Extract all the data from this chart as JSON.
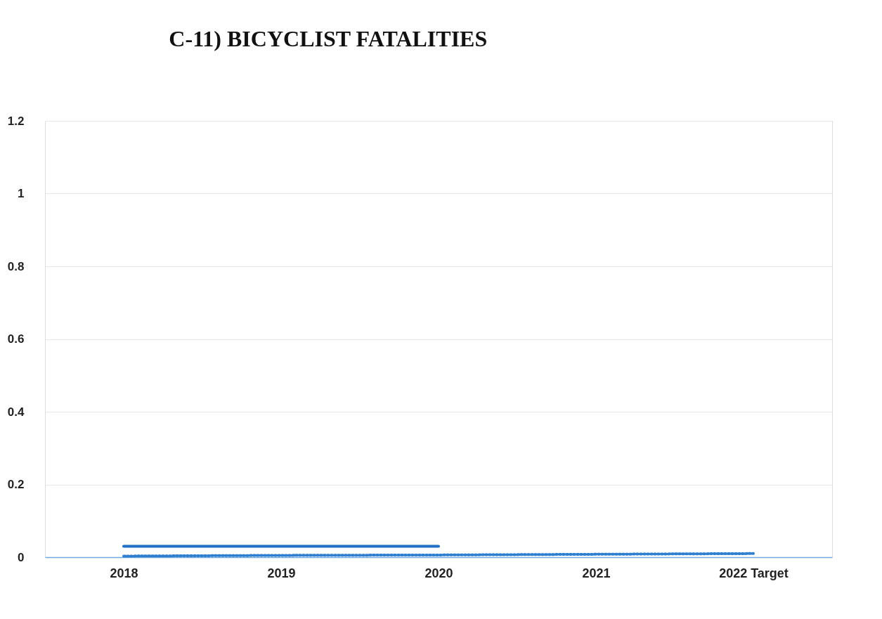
{
  "chart_data": {
    "type": "line",
    "title": "C-11) BICYCLIST FATALITIES",
    "categories": [
      "2018",
      "2019",
      "2020",
      "2021",
      "2022 Target"
    ],
    "series": [
      {
        "color": "#1f6fc5",
        "line_style": "solid",
        "values": [
          0.03,
          0.03,
          0.03,
          null,
          null
        ]
      },
      {
        "color": "#2f7fd0",
        "line_style": "dotted",
        "values": [
          0.003,
          0.005,
          0.006,
          0.008,
          0.01
        ]
      }
    ],
    "ylim": [
      0,
      1.2
    ],
    "yticks": [
      0,
      0.2,
      0.4,
      0.6,
      0.8,
      1,
      1.2
    ],
    "grid": "y",
    "marker": "none"
  }
}
